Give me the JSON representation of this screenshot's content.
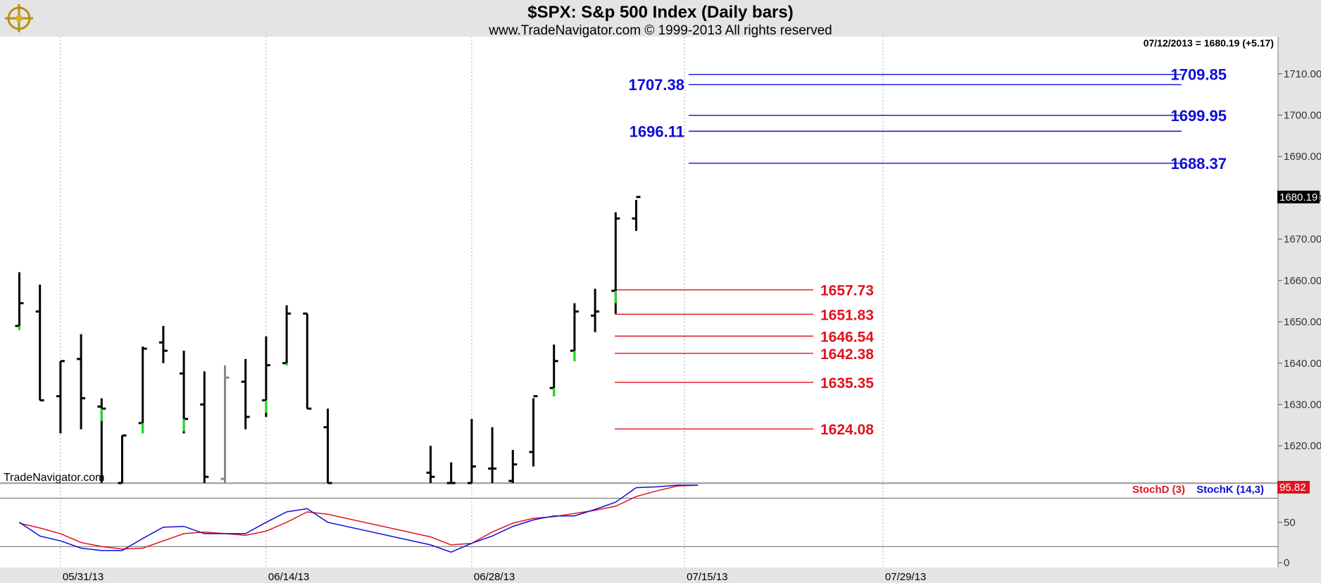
{
  "header": {
    "title": "$SPX:  S&p 500 Index  (Daily bars)",
    "subtitle": "www.TradeNavigator.com © 1999-2013 All rights reserved"
  },
  "info_line": "07/12/2013 = 1680.19 (+5.17)",
  "watermark": "TradeNavigator.com",
  "last_price_label": "1680.19",
  "stoch_last_label": "95.82",
  "colors": {
    "background": "#ffffff",
    "chrome": "#e4e4e4",
    "blue_levels": "#0d0dd9",
    "red_levels": "#e0141e",
    "bar": "#000000",
    "up_tick": "#1fe01f",
    "ghost_bar": "#888888",
    "grid": "#aaaaaa"
  },
  "chart_data": [
    {
      "type": "ohlc",
      "title": "$SPX:  S&p 500 Index  (Daily bars)",
      "ylim": [
        1611,
        1719
      ],
      "y_ticks": [
        1620,
        1630,
        1640,
        1650,
        1660,
        1670,
        1680,
        1690,
        1700,
        1710
      ],
      "y_tick_labels": [
        "1620.00",
        "1630.00",
        "1640.00",
        "1650.00",
        "1660.00",
        "1670.00",
        "1680.00",
        "1690.00",
        "1700.00",
        "1710.00"
      ],
      "x_tick_labels": [
        "05/31/13",
        "06/14/13",
        "06/28/13",
        "07/15/13",
        "07/29/13"
      ],
      "x_tick_dates": [
        "2013-05-31",
        "2013-06-14",
        "2013-06-28",
        "2013-07-15",
        "2013-07-29"
      ],
      "grid": "vertical dotted",
      "bars": [
        {
          "date": "2013-05-29",
          "open": 1649.0,
          "high": 1662.0,
          "low": 1648.0,
          "close": 1654.5,
          "up_tick": true
        },
        {
          "date": "2013-05-30",
          "open": 1652.5,
          "high": 1659.0,
          "low": 1631.0,
          "close": 1631.0
        },
        {
          "date": "2013-05-31",
          "open": 1632.0,
          "high": 1640.5,
          "low": 1623.0,
          "close": 1640.5
        },
        {
          "date": "2013-06-03",
          "open": 1641.0,
          "high": 1647.0,
          "low": 1624.0,
          "close": 1631.5
        },
        {
          "date": "2013-06-04",
          "open": 1629.5,
          "high": 1631.5,
          "low": 1611.0,
          "close": 1629.0,
          "up_tick": true
        },
        {
          "date": "2013-06-05",
          "open": 1611.0,
          "high": 1622.5,
          "low": 1611.0,
          "close": 1622.5
        },
        {
          "date": "2013-06-06",
          "open": 1625.5,
          "high": 1644.0,
          "low": 1623.0,
          "close": 1643.5,
          "up_tick": true
        },
        {
          "date": "2013-06-07",
          "open": 1645.0,
          "high": 1649.0,
          "low": 1640.0,
          "close": 1643.0
        },
        {
          "date": "2013-06-10",
          "open": 1637.5,
          "high": 1643.0,
          "low": 1623.0,
          "close": 1626.5,
          "up_tick": true
        },
        {
          "date": "2013-06-11",
          "open": 1630.0,
          "high": 1638.0,
          "low": 1611.0,
          "close": 1612.5
        },
        {
          "date": "2013-06-12",
          "open": 1612.0,
          "high": 1639.5,
          "low": 1611.0,
          "close": 1636.5,
          "ghost": true
        },
        {
          "date": "2013-06-13",
          "open": 1635.5,
          "high": 1641.0,
          "low": 1624.0,
          "close": 1627.0
        },
        {
          "date": "2013-06-14",
          "open": 1631.0,
          "high": 1646.5,
          "low": 1627.0,
          "close": 1639.5,
          "up_tick": true
        },
        {
          "date": "2013-06-17",
          "open": 1640.0,
          "high": 1654.0,
          "low": 1639.5,
          "close": 1652.0,
          "up_tick": true
        },
        {
          "date": "2013-06-18",
          "open": 1652.0,
          "high": 1652.0,
          "low": 1629.0,
          "close": 1629.0
        },
        {
          "date": "2013-06-19",
          "open": 1624.5,
          "high": 1629.0,
          "low": 1611.0,
          "close": 1611.0,
          "up_tick": true
        },
        {
          "date": "2013-06-26",
          "open": 1613.5,
          "high": 1620.0,
          "low": 1611.0,
          "close": 1612.5
        },
        {
          "date": "2013-06-27",
          "open": 1611.0,
          "high": 1616.0,
          "low": 1611.0,
          "close": 1611.0
        },
        {
          "date": "2013-06-28",
          "open": 1611.0,
          "high": 1626.5,
          "low": 1611.0,
          "close": 1615.0
        },
        {
          "date": "2013-07-01",
          "open": 1614.5,
          "high": 1624.5,
          "low": 1611.0,
          "close": 1614.5
        },
        {
          "date": "2013-07-02",
          "open": 1611.5,
          "high": 1619.0,
          "low": 1611.0,
          "close": 1615.5
        },
        {
          "date": "2013-07-03",
          "open": 1618.5,
          "high": 1631.5,
          "low": 1615.0,
          "close": 1632.0
        },
        {
          "date": "2013-07-05",
          "open": 1634.0,
          "high": 1644.5,
          "low": 1632.0,
          "close": 1640.5,
          "up_tick": true
        },
        {
          "date": "2013-07-08",
          "open": 1643.0,
          "high": 1654.5,
          "low": 1640.5,
          "close": 1652.5,
          "up_tick": true
        },
        {
          "date": "2013-07-09",
          "open": 1651.5,
          "high": 1658.0,
          "low": 1647.5,
          "close": 1652.5
        },
        {
          "date": "2013-07-10",
          "open": 1657.5,
          "high": 1676.5,
          "low": 1652.0,
          "close": 1675.0,
          "up_tick": true
        },
        {
          "date": "2013-07-11",
          "open": 1675.0,
          "high": 1679.5,
          "low": 1672.0,
          "close": 1680.2
        }
      ],
      "levels_blue": [
        {
          "value": 1709.85,
          "label": "1709.85"
        },
        {
          "value": 1707.38,
          "label": "1707.38"
        },
        {
          "value": 1699.95,
          "label": "1699.95"
        },
        {
          "value": 1696.11,
          "label": "1696.11"
        },
        {
          "value": 1688.37,
          "label": "1688.37"
        }
      ],
      "levels_red": [
        {
          "value": 1657.73,
          "label": "1657.73"
        },
        {
          "value": 1651.83,
          "label": "1651.83"
        },
        {
          "value": 1646.54,
          "label": "1646.54"
        },
        {
          "value": 1642.38,
          "label": "1642.38"
        },
        {
          "value": 1635.35,
          "label": "1635.35"
        },
        {
          "value": 1624.08,
          "label": "1624.08"
        }
      ]
    },
    {
      "type": "line",
      "title": "",
      "ylim": [
        -6,
        97
      ],
      "y_ticks": [
        0,
        50
      ],
      "y_tick_labels": [
        "0",
        "50"
      ],
      "reference_lines": [
        20,
        80
      ],
      "series": [
        {
          "name": "StochD (3)",
          "color": "#e0141e",
          "points": [
            [
              "2013-05-29",
              49
            ],
            [
              "2013-05-30",
              43
            ],
            [
              "2013-05-31",
              36
            ],
            [
              "2013-06-03",
              25
            ],
            [
              "2013-06-04",
              20
            ],
            [
              "2013-06-05",
              17
            ],
            [
              "2013-06-06",
              18
            ],
            [
              "2013-06-07",
              27
            ],
            [
              "2013-06-10",
              36
            ],
            [
              "2013-06-11",
              38
            ],
            [
              "2013-06-12",
              36
            ],
            [
              "2013-06-13",
              34
            ],
            [
              "2013-06-14",
              39
            ],
            [
              "2013-06-17",
              50
            ],
            [
              "2013-06-18",
              63
            ],
            [
              "2013-06-19",
              60
            ],
            [
              "2013-06-26",
              32
            ],
            [
              "2013-06-27",
              22
            ],
            [
              "2013-06-28",
              24
            ],
            [
              "2013-07-01",
              38
            ],
            [
              "2013-07-02",
              49
            ],
            [
              "2013-07-03",
              55
            ],
            [
              "2013-07-05",
              57
            ],
            [
              "2013-07-08",
              61
            ],
            [
              "2013-07-09",
              65
            ],
            [
              "2013-07-10",
              70
            ],
            [
              "2013-07-11",
              82
            ],
            [
              "2013-07-12",
              89
            ],
            [
              "2013-07-15",
              95
            ],
            [
              "2013-07-16",
              96
            ]
          ]
        },
        {
          "name": "StochK (14,3)",
          "color": "#0d0dd9",
          "points": [
            [
              "2013-05-29",
              50
            ],
            [
              "2013-05-30",
              33
            ],
            [
              "2013-05-31",
              27
            ],
            [
              "2013-06-03",
              18
            ],
            [
              "2013-06-04",
              15
            ],
            [
              "2013-06-05",
              15
            ],
            [
              "2013-06-06",
              30
            ],
            [
              "2013-06-07",
              44
            ],
            [
              "2013-06-10",
              45
            ],
            [
              "2013-06-11",
              36
            ],
            [
              "2013-06-12",
              36
            ],
            [
              "2013-06-13",
              36
            ],
            [
              "2013-06-14",
              50
            ],
            [
              "2013-06-17",
              63
            ],
            [
              "2013-06-18",
              67
            ],
            [
              "2013-06-19",
              50
            ],
            [
              "2013-06-26",
              22
            ],
            [
              "2013-06-27",
              13
            ],
            [
              "2013-06-28",
              24
            ],
            [
              "2013-07-01",
              33
            ],
            [
              "2013-07-02",
              45
            ],
            [
              "2013-07-03",
              53
            ],
            [
              "2013-07-05",
              58
            ],
            [
              "2013-07-08",
              58
            ],
            [
              "2013-07-09",
              66
            ],
            [
              "2013-07-10",
              75
            ],
            [
              "2013-07-11",
              93
            ],
            [
              "2013-07-12",
              94
            ],
            [
              "2013-07-15",
              96
            ],
            [
              "2013-07-16",
              96
            ]
          ]
        }
      ]
    }
  ]
}
